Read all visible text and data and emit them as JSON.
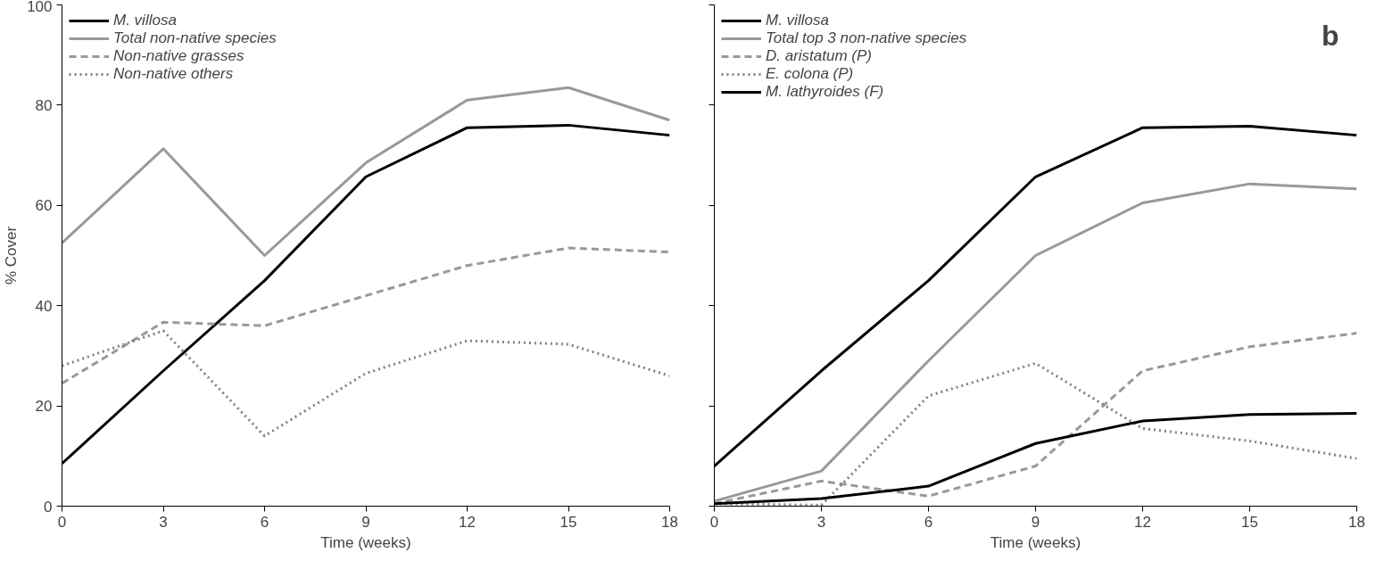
{
  "chart_data": [
    {
      "type": "line",
      "xlabel": "Time (weeks)",
      "ylabel": "% Cover",
      "x": [
        0,
        3,
        6,
        9,
        12,
        15,
        18
      ],
      "xlim": [
        0,
        18
      ],
      "xticks": [
        0,
        3,
        6,
        9,
        12,
        15,
        18
      ],
      "ylim": [
        0,
        100
      ],
      "yticks": [
        0,
        20,
        40,
        60,
        80,
        100
      ],
      "grid": false,
      "legend": "top left",
      "marker": "none",
      "series": [
        {
          "name": "M. villosa",
          "color": "#000000",
          "line_style": "solid",
          "values": [
            8.5,
            27,
            45,
            65.7,
            75.5,
            76,
            74
          ]
        },
        {
          "name": "Total non-native species",
          "color": "#999999",
          "line_style": "solid",
          "values": [
            52.5,
            71.3,
            50,
            68.5,
            81,
            83.5,
            77
          ]
        },
        {
          "name": "Non-native grasses",
          "color": "#999999",
          "line_style": "dashed",
          "values": [
            24.5,
            36.7,
            36,
            42,
            48,
            51.5,
            50.7
          ]
        },
        {
          "name": "Non-native others",
          "color": "#808080",
          "line_style": "dotted",
          "values": [
            28,
            35,
            14,
            26.5,
            33,
            32.3,
            26
          ]
        }
      ]
    },
    {
      "type": "line",
      "xlabel": "Time (weeks)",
      "annotations": [
        "b"
      ],
      "x": [
        0,
        3,
        6,
        9,
        12,
        15,
        18
      ],
      "xlim": [
        0,
        18
      ],
      "xticks": [
        0,
        3,
        6,
        9,
        12,
        15,
        18
      ],
      "ylim": [
        0,
        100
      ],
      "yticks": [
        0,
        20,
        40,
        60,
        80,
        100
      ],
      "tick_labels": "x",
      "grid": false,
      "legend": "top left",
      "marker": "none",
      "series": [
        {
          "name": "M. villosa",
          "color": "#000000",
          "line_style": "solid",
          "values": [
            8,
            27,
            45,
            65.7,
            75.5,
            75.8,
            74
          ]
        },
        {
          "name": "Total top 3 non-native species",
          "color": "#999999",
          "line_style": "solid",
          "values": [
            1,
            7,
            29,
            50,
            60.5,
            64.3,
            63.3
          ]
        },
        {
          "name": "D. aristatum (P)",
          "color": "#999999",
          "line_style": "dashed",
          "values": [
            0.5,
            5,
            2,
            8,
            27,
            31.8,
            34.5
          ]
        },
        {
          "name": "E. colona (P)",
          "color": "#808080",
          "line_style": "dotted",
          "values": [
            0.5,
            0.2,
            22,
            28.5,
            15.5,
            13,
            9.5
          ]
        },
        {
          "name": "M. lathyroides (F)",
          "color": "#000000",
          "line_style": "solid",
          "values": [
            0.5,
            1.5,
            4,
            12.5,
            17,
            18.3,
            18.5
          ]
        }
      ]
    }
  ]
}
